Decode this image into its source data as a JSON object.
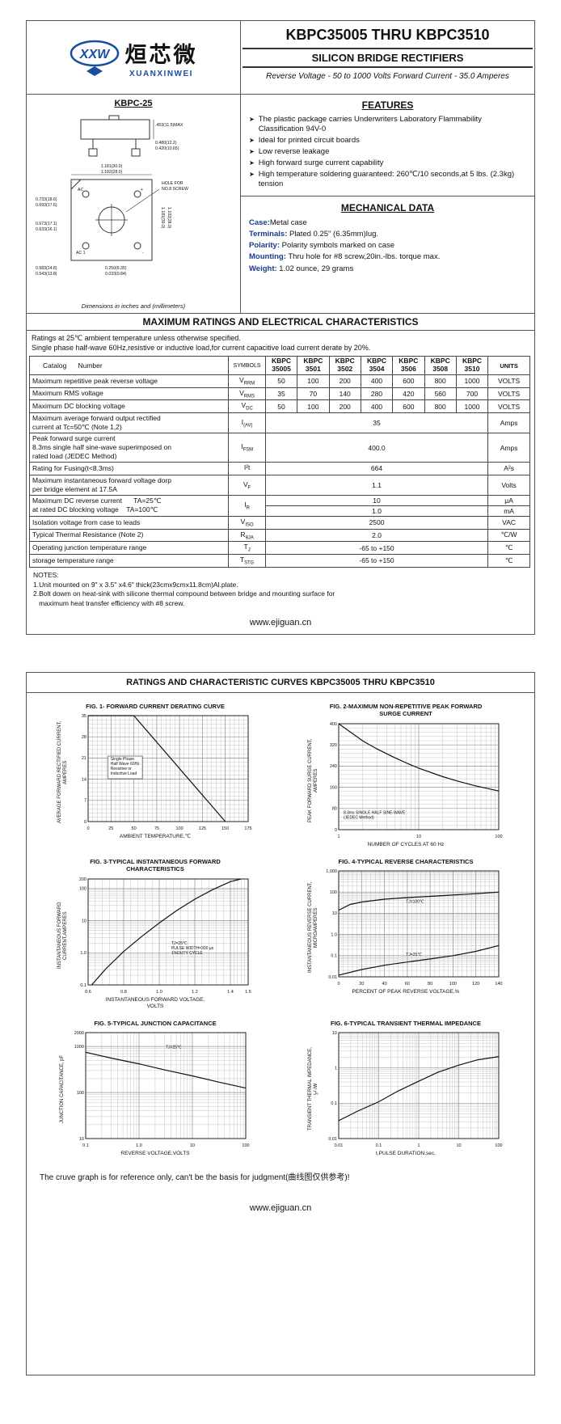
{
  "p1": {
    "logo": {
      "mark": "XXW",
      "brand_cn": "烜芯微",
      "brand_en": "XUANXINWEI"
    },
    "header": {
      "title": "KBPC35005 THRU KBPC3510",
      "subtitle": "SILICON BRIDGE RECTIFIERS",
      "tagline": "Reverse Voltage - 50 to 1000 Volts    Forward Current - 35.0 Amperes"
    },
    "package": {
      "name": "KBPC-25",
      "caption": "Dimensions in inches and (millimeters)",
      "side_max": ".453(11.5)MAX",
      "side_w1": "0.480(12.2)",
      "side_w2": "0.420(10.65)",
      "top_w1": "1.181(30.0)",
      "top_w2": "1.102(28.0)",
      "top_h1": "1.181(30.0)",
      "top_h2": "1.102(28.0)",
      "left_a1": "0.733(18.6)",
      "left_a2": "0.693(17.6)",
      "left_b1": "0.673(17.1)",
      "left_b2": "0.633(16.1)",
      "bot_1": "0.583(14.8)",
      "bot_2": "0.543(13.8)",
      "lug_1": "0.250(6.35)",
      "lug_2": "0.033(0.84)",
      "hole_1": "HOLE FOR",
      "hole_2": "NO.8 SCREW",
      "t_ac": "AC",
      "t_ac1": "AC 1",
      "t_plus": "+",
      "t_minus": "-"
    },
    "features": {
      "title": "FEATURES",
      "bullet": "➤",
      "items": [
        "The plastic package carries Underwriters Laboratory Flammability Classification 94V-0",
        "Ideal for printed circuit boards",
        "Low reverse leakage",
        "High forward surge current capability",
        "High temperature soldering guaranteed: 260℃/10 seconds,at 5 lbs. (2.3kg) tension"
      ]
    },
    "mechanical": {
      "title": "MECHANICAL DATA",
      "items": [
        {
          "label": "Case:",
          "text": "Metal case"
        },
        {
          "label": "Terminals:",
          "text": " Plated 0.25\"  (6.35mm)lug."
        },
        {
          "label": "Polarity:",
          "text": " Polarity symbols marked on case"
        },
        {
          "label": "Mounting:",
          "text": " Thru hole for #8 screw,20in.-lbs. torque max."
        },
        {
          "label": "Weight:",
          "text": " 1.02 ounce, 29 grams"
        }
      ]
    },
    "ratings": {
      "title": "MAXIMUM RATINGS AND ELECTRICAL CHARACTERISTICS",
      "intro1": "Ratings at 25℃ ambient temperature unless otherwise specified.",
      "intro2": "Single phase half-wave 60Hz,resistive or inductive load,for current capacitive load current derate by 20%.",
      "catalog_header": "Catalog      Number",
      "symbols_header": "SYMBOLS",
      "units_header": "UNITS",
      "parts": [
        "KBPC\n35005",
        "KBPC\n3501",
        "KBPC\n3502",
        "KBPC\n3504",
        "KBPC\n3506",
        "KBPC\n3508",
        "KBPC\n3510"
      ],
      "rows": [
        {
          "param": "Maximum repetitive peak reverse voltage",
          "sym_b": "V",
          "sym_s": "RRM",
          "values": [
            "50",
            "100",
            "200",
            "400",
            "600",
            "800",
            "1000"
          ],
          "unit": "VOLTS"
        },
        {
          "param": "Maximum RMS voltage",
          "sym_b": "V",
          "sym_s": "RMS",
          "values": [
            "35",
            "70",
            "140",
            "280",
            "420",
            "560",
            "700"
          ],
          "unit": "VOLTS"
        },
        {
          "param": "Maximum DC blocking voltage",
          "sym_b": "V",
          "sym_s": "DC",
          "values": [
            "50",
            "100",
            "200",
            "400",
            "600",
            "800",
            "1000"
          ],
          "unit": "VOLTS"
        },
        {
          "param": "Maximum average forward output rectified\ncurrent at  Tc=50℃  (Note 1,2)",
          "sym_b": "I",
          "sym_s": "(AV)",
          "value": "35",
          "unit": "Amps"
        },
        {
          "param": "Peak forward surge current\n8.3ms single half sine-wave superimposed on\nrated load (JEDEC Method)",
          "sym_b": "I",
          "sym_s": "FSM",
          "value": "400.0",
          "unit": "Amps"
        },
        {
          "param": "Rating for Fusing(t<8.3ms)",
          "sym_b": "I²t",
          "sym_s": "",
          "value": "664",
          "unit": "A²s"
        },
        {
          "param": "Maximum instantaneous forward voltage dorp\nper bridge element at 17.5A",
          "sym_b": "V",
          "sym_s": "F",
          "value": "1.1",
          "unit": "Volts"
        },
        {
          "param": "Maximum DC reverse current      TA=25℃\nat rated DC blocking voltage    TA=100℃",
          "sym_b": "I",
          "sym_s": "R",
          "values": [
            "10",
            "1.0"
          ],
          "units": [
            "μA",
            "mA"
          ]
        },
        {
          "param": "Isolation voltage from case to leads",
          "sym_b": "V",
          "sym_s": "ISO",
          "value": "2500",
          "unit": "VAC"
        },
        {
          "param": "Typical Thermal Resistance (Note 2)",
          "sym_b": "R",
          "sym_s": "θJA",
          "value": "2.0",
          "unit": "℃/W"
        },
        {
          "param": "Operating junction temperature range",
          "sym_b": "T",
          "sym_s": "J",
          "value": "-65 to +150",
          "unit": "℃"
        },
        {
          "param": "storage temperature range",
          "sym_b": "T",
          "sym_s": "STG",
          "value": "-65 to +150",
          "unit": "℃"
        }
      ]
    },
    "notes": "NOTES:\n1.Unit mounted on 9\"  x 3.5\"  x4.6\"  thick(23cmx9cmx11.8cm)Al.plate.\n2.Bolt dowm on heat-sink with silicone thermal compound between bridge and mounting surface for\n   maximum heat transfer efficiency with #8 screw.",
    "website": "www.ejiguan.cn"
  },
  "p2": {
    "title": "RATINGS AND CHARACTERISTIC CURVES KBPC35005 THRU KBPC3510",
    "note": "The cruve graph is for reference only, can't be the basis for judgment(曲线图仅供参考)!",
    "website": "www.ejiguan.cn"
  },
  "chart_data": [
    {
      "type": "line",
      "title": "FIG. 1- FORWARD CURRENT DERATING CURVE",
      "xlabel": "AMBIENT TEMPERATURE,℃",
      "ylabel": "AVERAGE FORWARD RECTIFIED CURRENT,\nAMPERES",
      "x": {
        "scale": "linear",
        "min": 0,
        "max": 175,
        "ticks": [
          0,
          25,
          50,
          75,
          100,
          125,
          150,
          175
        ]
      },
      "y": {
        "scale": "linear",
        "min": 0,
        "max": 35,
        "ticks": [
          0,
          7,
          14,
          21,
          28,
          35
        ]
      },
      "series": [
        {
          "name": "derating",
          "points": [
            [
              0,
              35
            ],
            [
              50,
              35
            ],
            [
              150,
              0
            ]
          ]
        }
      ],
      "annotations": [
        {
          "text": "Single Phase\nHalf Wave 60Hz\nResistive or\nInductive Load",
          "pos": [
            0.14,
            0.42
          ],
          "box": true
        }
      ]
    },
    {
      "type": "line",
      "title": "FIG. 2-MAXIMUM NON-REPETITIVE PEAK FORWARD\nSURGE CURRENT",
      "xlabel": "NUMBER OF CYCLES AT 60 Hz",
      "ylabel": "PEAK  FORWARD SURGE CURRENT,\nAMPERES",
      "x": {
        "scale": "log",
        "min": 1,
        "max": 100,
        "ticks": [
          1,
          10,
          100
        ],
        "labels": [
          "1",
          "10",
          "100"
        ]
      },
      "y": {
        "scale": "linear",
        "min": 0,
        "max": 400,
        "ticks": [
          0,
          80,
          160,
          240,
          320,
          400
        ],
        "labels": [
          "0",
          "80",
          "160",
          "240",
          "320",
          "400"
        ]
      },
      "series": [
        {
          "name": "surge",
          "points": [
            [
              1,
              400
            ],
            [
              2,
              335
            ],
            [
              3,
              305
            ],
            [
              5,
              272
            ],
            [
              7,
              252
            ],
            [
              10,
              232
            ],
            [
              20,
              200
            ],
            [
              30,
              184
            ],
            [
              50,
              166
            ],
            [
              100,
              146
            ]
          ]
        }
      ],
      "annotations": [
        {
          "text": "8.3ms SINGLE HALF SINE-WAVE\n(JEDEC Method)",
          "pos": [
            0.03,
            0.85
          ]
        }
      ]
    },
    {
      "type": "line",
      "title": "FIG. 3-TYPICAL INSTANTANEOUS FORWARD\nCHARACTERISTICS",
      "xlabel": "INSTANTANEOUS FORWARD VOLTAGE,\nVOLTS",
      "ylabel": "INSTANTANEOUS FORWARD\nCURRENT,AMPERES",
      "x": {
        "scale": "linear",
        "min": 0.6,
        "max": 1.5,
        "ticks": [
          0.6,
          0.8,
          1.0,
          1.2,
          1.4,
          1.5
        ],
        "labels": [
          "0.6",
          "0.8",
          "1.0",
          "1.2",
          "1.4",
          "1.5"
        ]
      },
      "y": {
        "scale": "log",
        "min": 0.1,
        "max": 200,
        "ticks": [
          0.1,
          1,
          10,
          100,
          200
        ],
        "labels": [
          "0.1",
          "1.0",
          "10",
          "100",
          "200"
        ]
      },
      "series": [
        {
          "name": "vf",
          "points": [
            [
              0.62,
              0.1
            ],
            [
              0.7,
              0.32
            ],
            [
              0.8,
              1.1
            ],
            [
              0.9,
              3.2
            ],
            [
              1.0,
              8.5
            ],
            [
              1.1,
              21
            ],
            [
              1.2,
              47
            ],
            [
              1.3,
              93
            ],
            [
              1.4,
              165
            ],
            [
              1.46,
              200
            ]
          ]
        }
      ],
      "annotations": [
        {
          "text": "TJ=25℃\nPULSE WIDTH=300 μs\n1%DUTY CYCLE",
          "pos": [
            0.52,
            0.62
          ]
        }
      ]
    },
    {
      "type": "line",
      "title": "FIG. 4-TYPICAL REVERSE CHARACTERISTICS",
      "xlabel": "PERCENT OF PEAK REVERSE VOLTAGE,%",
      "ylabel": "INSTANTANEOUS REVERSE CURRENT,\nMICROAMPERES",
      "x": {
        "scale": "linear",
        "min": 0,
        "max": 140,
        "ticks": [
          0,
          20,
          40,
          60,
          80,
          100,
          120,
          140
        ]
      },
      "y": {
        "scale": "log",
        "min": 0.01,
        "max": 1000,
        "ticks": [
          0.01,
          0.1,
          1,
          10,
          100,
          1000
        ],
        "labels": [
          "0.01",
          "0.1",
          "1.0",
          "10",
          "100",
          "1,000"
        ]
      },
      "series": [
        {
          "name": "TJ=100℃",
          "points": [
            [
              0,
              14
            ],
            [
              10,
              26
            ],
            [
              20,
              34
            ],
            [
              40,
              46
            ],
            [
              60,
              55
            ],
            [
              80,
              63
            ],
            [
              100,
              72
            ],
            [
              120,
              84
            ],
            [
              140,
              100
            ]
          ]
        },
        {
          "name": "TJ=25℃",
          "points": [
            [
              0,
              0.012
            ],
            [
              20,
              0.022
            ],
            [
              40,
              0.035
            ],
            [
              60,
              0.05
            ],
            [
              80,
              0.07
            ],
            [
              100,
              0.1
            ],
            [
              120,
              0.16
            ],
            [
              140,
              0.3
            ]
          ]
        }
      ],
      "annotations": [
        {
          "text": "TJ=100℃",
          "pos": [
            0.42,
            0.3
          ]
        },
        {
          "text": "TJ=25℃",
          "pos": [
            0.42,
            0.8
          ]
        }
      ]
    },
    {
      "type": "line",
      "title": "FIG. 5-TYPICAL JUNCTION CAPACITANCE",
      "xlabel": "REVERSE VOLTAGE,VOLTS",
      "ylabel": "JUNCTION CAPACITANCE, pF",
      "x": {
        "scale": "log",
        "min": 0.1,
        "max": 100,
        "ticks": [
          0.1,
          1,
          10,
          100
        ],
        "labels": [
          "0.1",
          "1.0",
          "10",
          "100"
        ]
      },
      "y": {
        "scale": "log",
        "min": 10,
        "max": 2000,
        "ticks": [
          10,
          100,
          1000,
          2000
        ],
        "labels": [
          "10",
          "100",
          "1000",
          "2000"
        ]
      },
      "series": [
        {
          "name": "cj",
          "points": [
            [
              0.1,
              750
            ],
            [
              0.3,
              560
            ],
            [
              1,
              420
            ],
            [
              3,
              310
            ],
            [
              10,
              230
            ],
            [
              30,
              170
            ],
            [
              100,
              125
            ]
          ]
        }
      ],
      "annotations": [
        {
          "text": "TJ=25℃",
          "pos": [
            0.5,
            0.15
          ]
        }
      ]
    },
    {
      "type": "line",
      "title": "FIG. 6-TYPICAL TRANSIENT THERMAL IMPEDANCE",
      "xlabel": "t,PULSE DURATION,sec.",
      "ylabel": "TRANSIENT THERMAL IMPEDANCE,\n℃/W",
      "x": {
        "scale": "log",
        "min": 0.01,
        "max": 100,
        "ticks": [
          0.01,
          0.1,
          1,
          10,
          100
        ],
        "labels": [
          "0.01",
          "0.1",
          "1",
          "10",
          "100"
        ]
      },
      "y": {
        "scale": "log",
        "min": 0.01,
        "max": 10,
        "ticks": [
          0.01,
          0.1,
          1,
          10
        ],
        "labels": [
          "0.01",
          "0.1",
          "1",
          "10"
        ]
      },
      "series": [
        {
          "name": "zth",
          "points": [
            [
              0.01,
              0.032
            ],
            [
              0.03,
              0.06
            ],
            [
              0.1,
              0.11
            ],
            [
              0.3,
              0.22
            ],
            [
              1,
              0.42
            ],
            [
              3,
              0.75
            ],
            [
              10,
              1.2
            ],
            [
              30,
              1.7
            ],
            [
              100,
              2.1
            ]
          ]
        }
      ]
    }
  ]
}
